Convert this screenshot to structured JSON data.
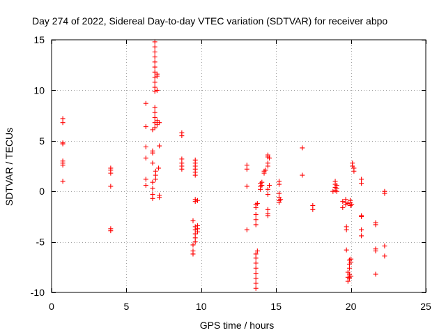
{
  "chart_data": {
    "type": "scatter",
    "title": "Day 274 of 2022, Sidereal Day-to-day VTEC variation (SDTVAR) for receiver abpo",
    "xlabel": "GPS time / hours",
    "ylabel": "SDTVAR / TECUs",
    "xlim": [
      0,
      25
    ],
    "ylim": [
      -10,
      15
    ],
    "xticks": [
      0,
      5,
      10,
      15,
      20,
      25
    ],
    "yticks": [
      -10,
      -5,
      0,
      5,
      10,
      15
    ],
    "grid": true,
    "marker": "+",
    "color": "#ff0000",
    "series": [
      {
        "name": "SDTVAR",
        "points": [
          [
            0.75,
            7.2
          ],
          [
            0.75,
            6.8
          ],
          [
            0.75,
            4.8
          ],
          [
            0.75,
            4.7
          ],
          [
            0.75,
            3.0
          ],
          [
            0.75,
            2.8
          ],
          [
            0.75,
            2.6
          ],
          [
            0.75,
            1.0
          ],
          [
            3.95,
            2.3
          ],
          [
            3.95,
            2.1
          ],
          [
            3.95,
            1.8
          ],
          [
            3.95,
            0.5
          ],
          [
            3.95,
            -3.7
          ],
          [
            3.95,
            -3.9
          ],
          [
            6.3,
            8.7
          ],
          [
            6.3,
            6.4
          ],
          [
            6.3,
            4.4
          ],
          [
            6.3,
            3.3
          ],
          [
            6.3,
            1.2
          ],
          [
            6.3,
            0.6
          ],
          [
            6.75,
            6.1
          ],
          [
            6.75,
            4.0
          ],
          [
            6.75,
            3.8
          ],
          [
            6.75,
            2.8
          ],
          [
            6.75,
            0.9
          ],
          [
            6.75,
            0.3
          ],
          [
            6.75,
            -0.3
          ],
          [
            6.75,
            -0.7
          ],
          [
            6.9,
            14.8
          ],
          [
            6.9,
            14.3
          ],
          [
            6.9,
            13.8
          ],
          [
            6.9,
            13.3
          ],
          [
            6.9,
            12.8
          ],
          [
            6.9,
            12.3
          ],
          [
            6.9,
            11.8
          ],
          [
            6.9,
            11.3
          ],
          [
            6.9,
            10.8
          ],
          [
            6.9,
            10.3
          ],
          [
            6.9,
            9.9
          ],
          [
            6.9,
            8.3
          ],
          [
            6.9,
            7.8
          ],
          [
            6.9,
            7.3
          ],
          [
            6.9,
            6.8
          ],
          [
            6.9,
            6.3
          ],
          [
            6.95,
            2.0
          ],
          [
            6.95,
            1.6
          ],
          [
            6.95,
            1.2
          ],
          [
            7.05,
            11.6
          ],
          [
            7.05,
            11.4
          ],
          [
            7.05,
            10.0
          ],
          [
            7.05,
            7.0
          ],
          [
            7.05,
            6.6
          ],
          [
            7.15,
            2.3
          ],
          [
            7.2,
            4.5
          ],
          [
            7.2,
            6.8
          ],
          [
            7.2,
            -0.4
          ],
          [
            7.2,
            -0.6
          ],
          [
            8.7,
            5.8
          ],
          [
            8.7,
            5.5
          ],
          [
            8.7,
            3.2
          ],
          [
            8.7,
            2.8
          ],
          [
            8.7,
            2.5
          ],
          [
            8.7,
            2.2
          ],
          [
            9.45,
            -2.9
          ],
          [
            9.45,
            -5.3
          ],
          [
            9.45,
            -5.9
          ],
          [
            9.45,
            -6.2
          ],
          [
            9.6,
            3.1
          ],
          [
            9.6,
            2.8
          ],
          [
            9.6,
            2.5
          ],
          [
            9.6,
            2.2
          ],
          [
            9.6,
            1.9
          ],
          [
            9.6,
            1.6
          ],
          [
            9.6,
            -0.8
          ],
          [
            9.6,
            -1.0
          ],
          [
            9.6,
            -3.5
          ],
          [
            9.6,
            -3.8
          ],
          [
            9.6,
            -4.2
          ],
          [
            9.6,
            -4.6
          ],
          [
            9.6,
            -5.0
          ],
          [
            9.75,
            -0.9
          ],
          [
            9.75,
            -3.4
          ],
          [
            9.75,
            -3.7
          ],
          [
            9.75,
            -4.0
          ],
          [
            13.05,
            2.6
          ],
          [
            13.05,
            2.2
          ],
          [
            13.05,
            0.5
          ],
          [
            13.05,
            -3.8
          ],
          [
            13.65,
            -1.3
          ],
          [
            13.65,
            -1.6
          ],
          [
            13.65,
            -2.3
          ],
          [
            13.65,
            -2.8
          ],
          [
            13.65,
            -3.3
          ],
          [
            13.65,
            -6.2
          ],
          [
            13.65,
            -6.6
          ],
          [
            13.65,
            -7.1
          ],
          [
            13.65,
            -7.6
          ],
          [
            13.65,
            -8.1
          ],
          [
            13.65,
            -8.6
          ],
          [
            13.65,
            -9.1
          ],
          [
            13.65,
            -9.6
          ],
          [
            13.75,
            -1.2
          ],
          [
            13.75,
            -5.9
          ],
          [
            13.95,
            0.8
          ],
          [
            13.95,
            0.5
          ],
          [
            13.95,
            0.2
          ],
          [
            14.05,
            0.9
          ],
          [
            14.05,
            0.6
          ],
          [
            14.2,
            2.0
          ],
          [
            14.2,
            1.8
          ],
          [
            14.3,
            2.1
          ],
          [
            14.45,
            3.6
          ],
          [
            14.45,
            3.4
          ],
          [
            14.45,
            2.8
          ],
          [
            14.45,
            2.5
          ],
          [
            14.45,
            0.2
          ],
          [
            14.45,
            -0.3
          ],
          [
            14.45,
            -1.8
          ],
          [
            14.45,
            -2.2
          ],
          [
            14.45,
            -2.4
          ],
          [
            14.55,
            3.3
          ],
          [
            14.55,
            0.6
          ],
          [
            15.2,
            1.0
          ],
          [
            15.2,
            0.7
          ],
          [
            15.2,
            -0.2
          ],
          [
            15.2,
            -0.6
          ],
          [
            15.2,
            -0.9
          ],
          [
            15.2,
            -1.1
          ],
          [
            15.3,
            -0.8
          ],
          [
            16.75,
            4.3
          ],
          [
            16.75,
            1.6
          ],
          [
            17.45,
            -1.4
          ],
          [
            17.45,
            -1.8
          ],
          [
            18.8,
            0.0
          ],
          [
            18.95,
            1.0
          ],
          [
            18.95,
            0.7
          ],
          [
            18.95,
            0.4
          ],
          [
            18.95,
            0.1
          ],
          [
            19.05,
            0.6
          ],
          [
            19.05,
            0.3
          ],
          [
            19.05,
            0.0
          ],
          [
            19.45,
            -1.0
          ],
          [
            19.45,
            -1.6
          ],
          [
            19.65,
            -0.8
          ],
          [
            19.65,
            -1.1
          ],
          [
            19.65,
            -1.3
          ],
          [
            19.7,
            -3.5
          ],
          [
            19.7,
            -3.8
          ],
          [
            19.7,
            -5.8
          ],
          [
            19.8,
            -1.2
          ],
          [
            19.8,
            -8.0
          ],
          [
            19.8,
            -8.5
          ],
          [
            19.8,
            -8.9
          ],
          [
            19.9,
            -6.8
          ],
          [
            19.9,
            -7.2
          ],
          [
            19.9,
            -7.6
          ],
          [
            19.9,
            -8.2
          ],
          [
            19.9,
            -8.6
          ],
          [
            19.95,
            -1.4
          ],
          [
            19.95,
            -1.1
          ],
          [
            19.95,
            -0.9
          ],
          [
            20.0,
            -6.7
          ],
          [
            20.0,
            -7.0
          ],
          [
            20.0,
            -8.4
          ],
          [
            20.05,
            -1.3
          ],
          [
            20.1,
            2.8
          ],
          [
            20.1,
            2.5
          ],
          [
            20.2,
            2.3
          ],
          [
            20.2,
            2.0
          ],
          [
            20.7,
            1.2
          ],
          [
            20.7,
            0.8
          ],
          [
            20.7,
            -2.4
          ],
          [
            20.7,
            -2.5
          ],
          [
            20.7,
            -3.8
          ],
          [
            20.7,
            -4.4
          ],
          [
            21.65,
            -3.1
          ],
          [
            21.65,
            -3.3
          ],
          [
            21.65,
            -5.7
          ],
          [
            21.65,
            -5.9
          ],
          [
            21.65,
            -8.2
          ],
          [
            22.25,
            0.0
          ],
          [
            22.25,
            -0.2
          ],
          [
            22.25,
            -5.4
          ],
          [
            22.25,
            -6.4
          ]
        ]
      }
    ]
  }
}
